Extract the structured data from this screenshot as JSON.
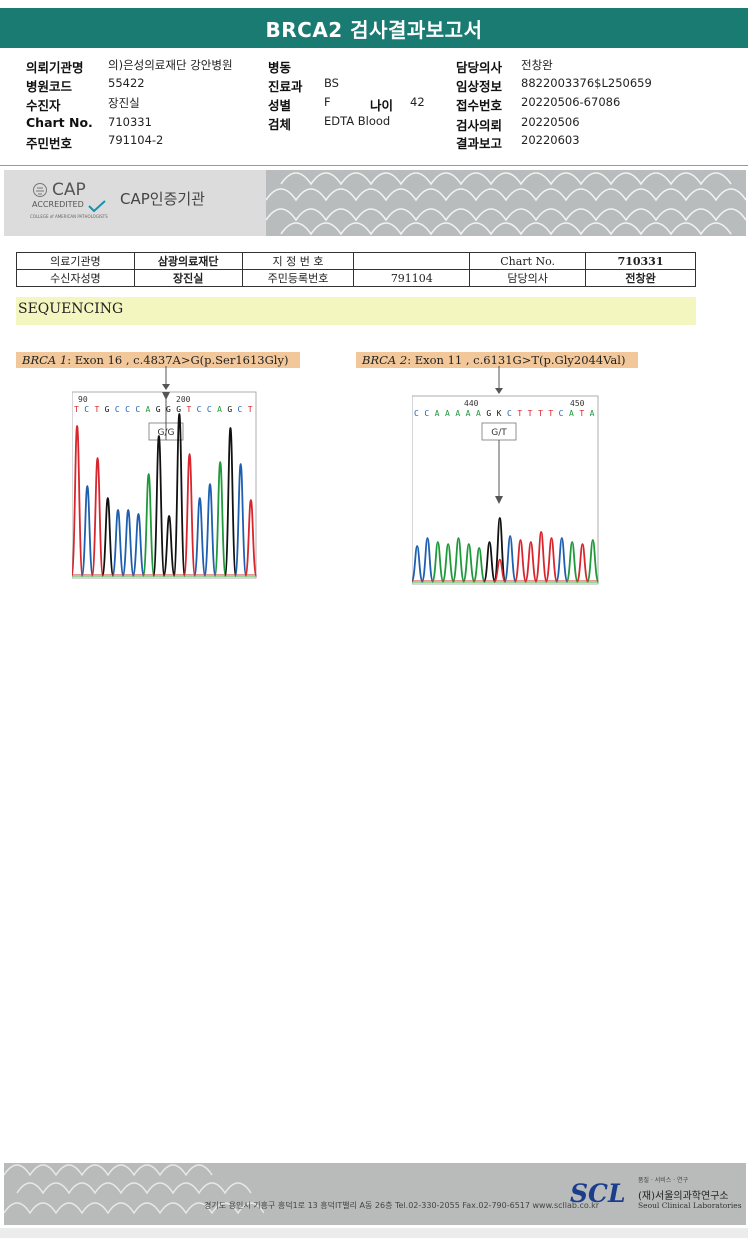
{
  "title": "BRCA2 검사결과보고서",
  "info": {
    "institution_label": "의뢰기관명",
    "institution": "의)은성의료재단 강안병원",
    "hospital_code_label": "병원코드",
    "hospital_code": "55422",
    "recipient_label": "수진자",
    "recipient": "장진실",
    "chart_label": "Chart No.",
    "chart_no": "710331",
    "resident_label": "주민번호",
    "resident_no": "791104-2",
    "ward_label": "병동",
    "ward": "",
    "dept_label": "진료과",
    "dept": "BS",
    "sex_label": "성별",
    "sex": "F",
    "age_label": "나이",
    "age": "42",
    "specimen_label": "검체",
    "specimen": "EDTA Blood",
    "doctor_label": "담당의사",
    "doctor": "전창완",
    "clinical_label": "임상정보",
    "clinical": "8822003376$L250659",
    "receipt_label": "접수번호",
    "receipt_no": "20220506-67086",
    "requested_label": "검사의뢰",
    "requested": "20220506",
    "reported_label": "결과보고",
    "reported": "20220603"
  },
  "cap": {
    "brand": "CAP",
    "accredited": "ACCREDITED",
    "college": "COLLEGE of AMERICAN PATHOLOGISTS",
    "institution": "CAP인증기관"
  },
  "patient_table": {
    "r1": [
      "의료기관명",
      "삼광의료재단",
      "지 정 번 호",
      "",
      "Chart No.",
      "710331"
    ],
    "r2": [
      "수신자성명",
      "장진실",
      "주민등록번호",
      "791104",
      "담당의사",
      "전창완"
    ]
  },
  "section": "SEQUENCING",
  "variants": [
    {
      "gene": "BRCA 1",
      "desc": ": Exon 16 , c.4837A>G(p.Ser1613Gly)",
      "pos_left": "90",
      "pos_right": "200",
      "sequence": "TCTGCCCAGGGTCCAGCT",
      "genotype": "G/G"
    },
    {
      "gene": "BRCA 2",
      "desc": ": Exon 11 , c.6131G>T(p.Gly2044Val)",
      "pos_left": "440",
      "pos_right": "450",
      "sequence": "CCAAAAAGKCTTTTCATA",
      "genotype": "G/T"
    }
  ],
  "footer": {
    "address": "경기도 용인시 기흥구 흥덕1로 13 흥덕IT밸리 A동 26층  Tel.02-330-2055  Fax.02-790-6517  www.scllab.co.kr",
    "logo": "SCL",
    "tagline": "품질 · 서비스 · 연구",
    "org": "(재)서울의과학연구소",
    "org_en": "Seoul Clinical Laboratories"
  },
  "colors": {
    "title_bar": "#1a7b73",
    "A": "#1f9a3a",
    "C": "#1f5fb0",
    "G": "#111111",
    "T": "#d8262e",
    "variant_label": "#f2c89a",
    "section_band": "#f4f6c0"
  }
}
